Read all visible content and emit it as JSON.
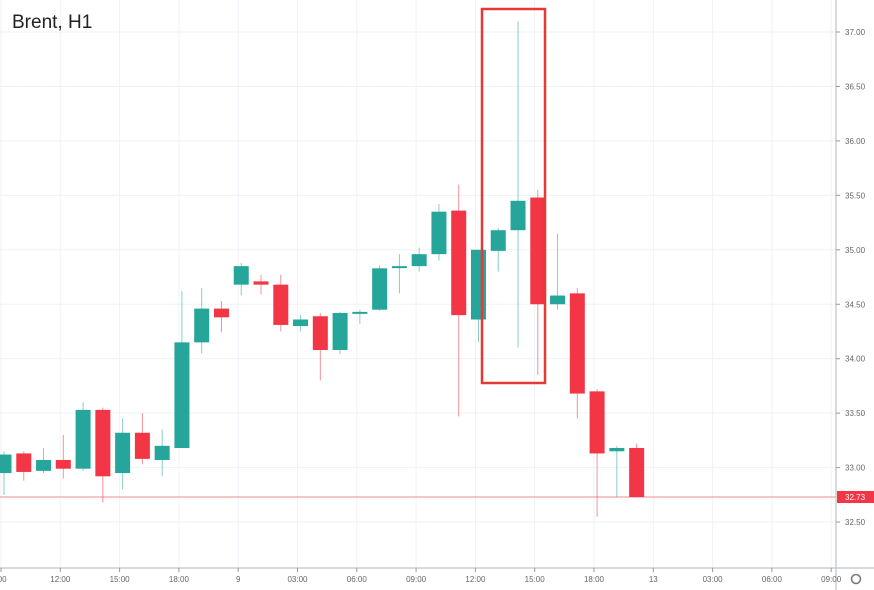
{
  "header": {
    "symbol_title": "Brent, H1"
  },
  "price_axis": {
    "ticks": [
      "37.00",
      "36.50",
      "36.00",
      "35.50",
      "35.00",
      "34.50",
      "34.00",
      "33.50",
      "33.00",
      "32.50"
    ],
    "last_price": "32.73"
  },
  "time_axis": {
    "ticks": [
      ":00",
      "12:00",
      "15:00",
      "18:00",
      "9",
      "03:00",
      "06:00",
      "09:00",
      "12:00",
      "15:00",
      "18:00",
      "13",
      "03:00",
      "06:00",
      "09:00"
    ]
  },
  "colors": {
    "up": "#26a69a",
    "down": "#f23645",
    "grid": "#eef3f7",
    "last_price_line": "#f28b93",
    "highlight_box": "#e53935"
  },
  "icons": {
    "settings": "gear-circle-icon"
  },
  "chart_data": {
    "type": "candlestick",
    "title": "Brent, H1",
    "xlabel": "",
    "ylabel": "",
    "ylim": [
      32.2,
      37.2
    ],
    "grid": true,
    "last_price": 32.73,
    "annotations": [
      {
        "type": "rectangle",
        "color": "#e53935",
        "covers_candles": [
          22,
          24
        ],
        "note": "red box highlighting long-wick candles"
      }
    ],
    "x": [
      "c0",
      "c1",
      "c2",
      "c3",
      "c4",
      "c5",
      "c6",
      "c7",
      "c8",
      "c9",
      "c10",
      "c11",
      "c12",
      "c13",
      "c14",
      "c15",
      "c16",
      "c17",
      "c18",
      "c19",
      "c20",
      "c21",
      "c22",
      "c23",
      "c24",
      "c25",
      "c26",
      "c27",
      "c28",
      "c29",
      "c30",
      "c31",
      "c32"
    ],
    "candles": [
      {
        "open": 32.95,
        "high": 33.15,
        "low": 32.75,
        "close": 33.12
      },
      {
        "open": 33.13,
        "high": 33.15,
        "low": 32.88,
        "close": 32.96
      },
      {
        "open": 32.97,
        "high": 33.18,
        "low": 32.95,
        "close": 33.07
      },
      {
        "open": 33.07,
        "high": 33.3,
        "low": 32.9,
        "close": 32.99
      },
      {
        "open": 32.99,
        "high": 33.6,
        "low": 32.97,
        "close": 33.53
      },
      {
        "open": 33.53,
        "high": 33.55,
        "low": 32.68,
        "close": 32.92
      },
      {
        "open": 32.95,
        "high": 33.45,
        "low": 32.8,
        "close": 33.32
      },
      {
        "open": 33.32,
        "high": 33.5,
        "low": 33.03,
        "close": 33.08
      },
      {
        "open": 33.07,
        "high": 33.35,
        "low": 32.92,
        "close": 33.2
      },
      {
        "open": 33.18,
        "high": 34.62,
        "low": 33.18,
        "close": 34.15
      },
      {
        "open": 34.15,
        "high": 34.65,
        "low": 34.05,
        "close": 34.46
      },
      {
        "open": 34.46,
        "high": 34.53,
        "low": 34.24,
        "close": 34.38
      },
      {
        "open": 34.68,
        "high": 34.88,
        "low": 34.58,
        "close": 34.85
      },
      {
        "open": 34.71,
        "high": 34.77,
        "low": 34.59,
        "close": 34.68
      },
      {
        "open": 34.68,
        "high": 34.77,
        "low": 34.25,
        "close": 34.31
      },
      {
        "open": 34.3,
        "high": 34.4,
        "low": 34.25,
        "close": 34.36
      },
      {
        "open": 34.39,
        "high": 34.42,
        "low": 33.8,
        "close": 34.08
      },
      {
        "open": 34.08,
        "high": 34.43,
        "low": 34.04,
        "close": 34.42
      },
      {
        "open": 34.43,
        "high": 34.45,
        "low": 34.32,
        "close": 34.43
      },
      {
        "open": 34.45,
        "high": 34.86,
        "low": 34.44,
        "close": 34.83
      },
      {
        "open": 34.84,
        "high": 34.96,
        "low": 34.6,
        "close": 34.85
      },
      {
        "open": 34.85,
        "high": 35.02,
        "low": 34.8,
        "close": 34.96
      },
      {
        "open": 34.96,
        "high": 35.42,
        "low": 34.9,
        "close": 35.35
      },
      {
        "open": 35.36,
        "high": 35.6,
        "low": 33.47,
        "close": 34.4
      },
      {
        "open": 34.36,
        "high": 35.0,
        "low": 34.15,
        "close": 35.0
      },
      {
        "open": 34.99,
        "high": 35.2,
        "low": 34.8,
        "close": 35.18
      },
      {
        "open": 35.18,
        "high": 37.1,
        "low": 34.1,
        "close": 35.45
      },
      {
        "open": 35.48,
        "high": 35.55,
        "low": 33.85,
        "close": 34.5
      },
      {
        "open": 34.5,
        "high": 35.15,
        "low": 34.45,
        "close": 34.58
      },
      {
        "open": 34.6,
        "high": 34.65,
        "low": 33.45,
        "close": 33.68
      },
      {
        "open": 33.7,
        "high": 33.72,
        "low": 32.55,
        "close": 33.13
      },
      {
        "open": 33.15,
        "high": 33.2,
        "low": 32.73,
        "close": 33.18
      },
      {
        "open": 33.18,
        "high": 33.22,
        "low": 32.73,
        "close": 32.73
      }
    ]
  }
}
